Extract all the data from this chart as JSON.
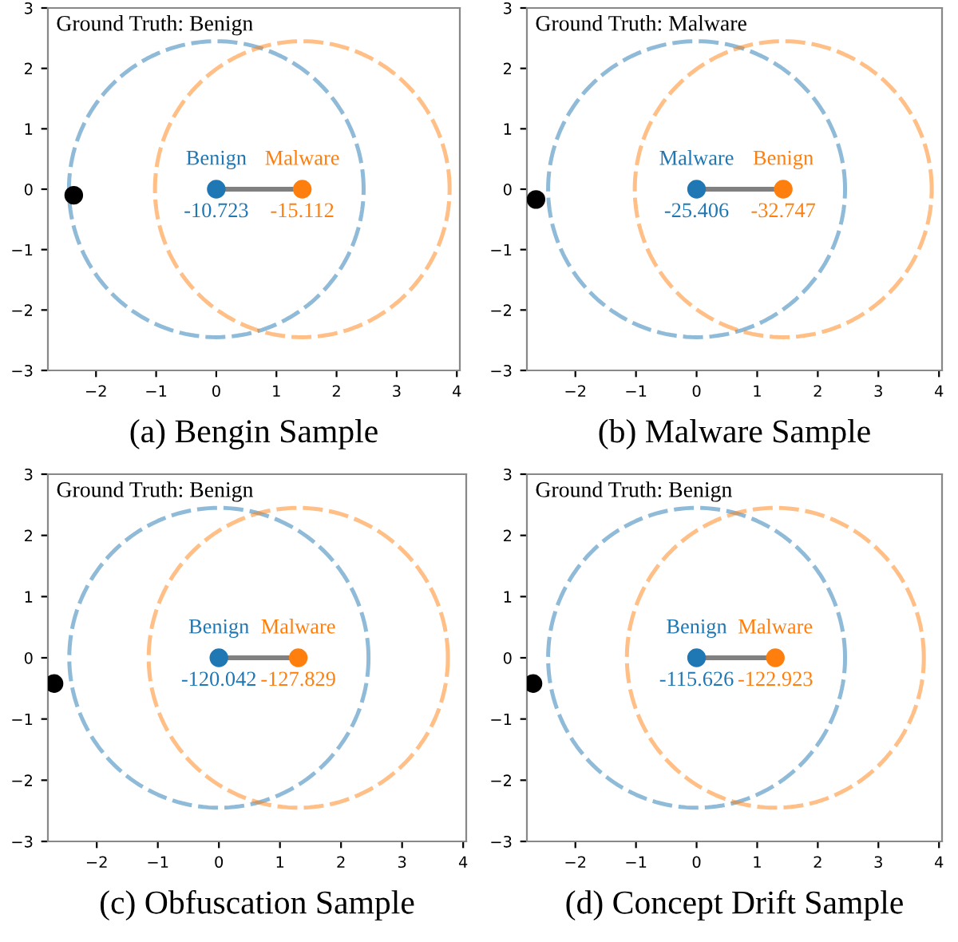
{
  "chart_data": [
    {
      "type": "scatter",
      "title": "(a) Bengin Sample",
      "xlim": [
        -2.8,
        4.05
      ],
      "ylim": [
        -3,
        3
      ],
      "xticks": [
        -2,
        -1,
        0,
        1,
        2,
        3,
        4
      ],
      "yticks": [
        -3,
        -2,
        -1,
        0,
        1,
        2,
        3
      ],
      "grid": false,
      "legend": false,
      "annotations": [
        "Ground Truth: Benign",
        {
          "text": "-10.723",
          "x": 0,
          "y": 0
        },
        {
          "text": "-15.112",
          "x": 1.43,
          "y": 0
        }
      ],
      "series": [
        {
          "type": "scatter",
          "name": "Benign",
          "color": "#1f77b4",
          "marker": "circle",
          "x": [
            0
          ],
          "values": [
            0
          ]
        },
        {
          "type": "scatter",
          "name": "Malware",
          "color": "#ff7f0e",
          "marker": "circle",
          "x": [
            1.43
          ],
          "values": [
            0
          ]
        },
        {
          "type": "scatter",
          "color": "#000000",
          "marker": "circle",
          "x": [
            -2.37
          ],
          "values": [
            -0.1
          ]
        }
      ]
    },
    {
      "type": "scatter",
      "title": "(b) Malware Sample",
      "xlim": [
        -2.8,
        4.05
      ],
      "ylim": [
        -3,
        3
      ],
      "xticks": [
        -2,
        -1,
        0,
        1,
        2,
        3,
        4
      ],
      "yticks": [
        -3,
        -2,
        -1,
        0,
        1,
        2,
        3
      ],
      "grid": false,
      "legend": false,
      "annotations": [
        "Ground Truth: Malware",
        {
          "text": "-25.406",
          "x": 0,
          "y": 0
        },
        {
          "text": "-32.747",
          "x": 1.43,
          "y": 0
        }
      ],
      "series": [
        {
          "type": "scatter",
          "name": "Malware",
          "color": "#1f77b4",
          "marker": "circle",
          "x": [
            0
          ],
          "values": [
            0
          ]
        },
        {
          "type": "scatter",
          "name": "Benign",
          "color": "#ff7f0e",
          "marker": "circle",
          "x": [
            1.43
          ],
          "values": [
            0
          ]
        },
        {
          "type": "scatter",
          "color": "#000000",
          "marker": "circle",
          "x": [
            -2.65
          ],
          "values": [
            -0.17
          ]
        }
      ]
    },
    {
      "type": "scatter",
      "title": "(c) Obfuscation Sample",
      "xlim": [
        -2.8,
        4.05
      ],
      "ylim": [
        -3,
        3
      ],
      "xticks": [
        -2,
        -1,
        0,
        1,
        2,
        3,
        4
      ],
      "yticks": [
        -3,
        -2,
        -1,
        0,
        1,
        2,
        3
      ],
      "grid": false,
      "legend": false,
      "annotations": [
        "Ground Truth: Benign",
        {
          "text": "-120.042",
          "x": 0,
          "y": 0
        },
        {
          "text": "-127.829",
          "x": 1.3,
          "y": 0
        }
      ],
      "series": [
        {
          "type": "scatter",
          "name": "Benign",
          "color": "#1f77b4",
          "marker": "circle",
          "x": [
            0
          ],
          "values": [
            0
          ]
        },
        {
          "type": "scatter",
          "name": "Malware",
          "color": "#ff7f0e",
          "marker": "circle",
          "x": [
            1.3
          ],
          "values": [
            0
          ]
        },
        {
          "type": "scatter",
          "color": "#000000",
          "marker": "circle",
          "x": [
            -2.7
          ],
          "values": [
            -0.42
          ]
        }
      ]
    },
    {
      "type": "scatter",
      "title": "(d) Concept Drift Sample",
      "xlim": [
        -2.8,
        4.05
      ],
      "ylim": [
        -3,
        3
      ],
      "xticks": [
        -2,
        -1,
        0,
        1,
        2,
        3,
        4
      ],
      "yticks": [
        -3,
        -2,
        -1,
        0,
        1,
        2,
        3
      ],
      "grid": false,
      "legend": false,
      "annotations": [
        "Ground Truth: Benign",
        {
          "text": "-115.626",
          "x": 0,
          "y": 0
        },
        {
          "text": "-122.923",
          "x": 1.3,
          "y": 0
        }
      ],
      "series": [
        {
          "type": "scatter",
          "name": "Benign",
          "color": "#1f77b4",
          "marker": "circle",
          "x": [
            0
          ],
          "values": [
            0
          ]
        },
        {
          "type": "scatter",
          "name": "Malware",
          "color": "#ff7f0e",
          "marker": "circle",
          "x": [
            1.3
          ],
          "values": [
            0
          ]
        },
        {
          "type": "scatter",
          "color": "#000000",
          "marker": "circle",
          "x": [
            -2.7
          ],
          "values": [
            -0.42
          ]
        }
      ]
    }
  ]
}
